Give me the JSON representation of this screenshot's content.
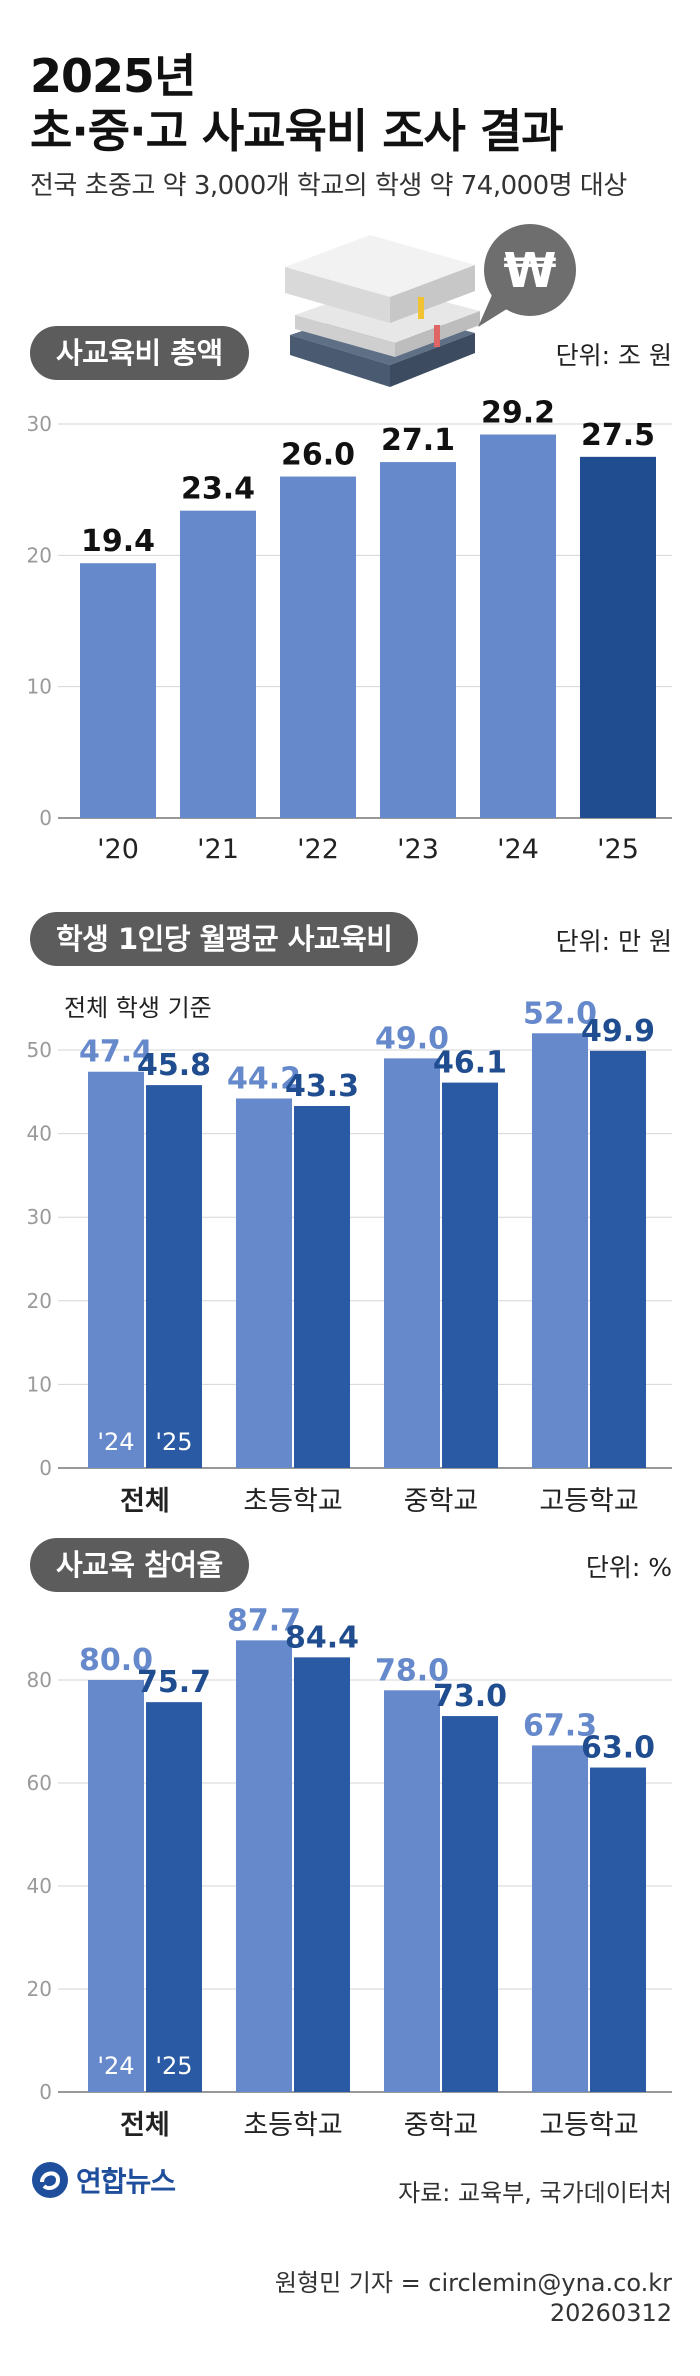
{
  "title": {
    "line1": "2025년",
    "line2": "초·중·고 사교육비 조사 결과"
  },
  "subtitle": "전국 초중고 약 3,000개 학교의 학생 약 74,000명 대상",
  "illustration": {
    "icon": "won-speech-bubble-books-icon",
    "symbol": "₩"
  },
  "colors": {
    "light": "#6689cc",
    "dark": "#2a5aa3",
    "darkest": "#1f4d8f",
    "pill": "#5c5c5c"
  },
  "sections": [
    {
      "pill": "사교육비 총액",
      "unit": "단위: 조 원"
    },
    {
      "pill": "학생 1인당 월평균 사교육비",
      "unit": "단위: 만 원",
      "note": "전체 학생 기준"
    },
    {
      "pill": "사교육 참여율",
      "unit": "단위: %"
    }
  ],
  "chart_data": [
    {
      "type": "bar",
      "categories": [
        "'20",
        "'21",
        "'22",
        "'23",
        "'24",
        "'25"
      ],
      "values": [
        19.4,
        23.4,
        26.0,
        27.1,
        29.2,
        27.5
      ],
      "value_labels": [
        "19.4",
        "23.4",
        "26.0",
        "27.1",
        "29.2",
        "27.5"
      ],
      "yticks": [
        "0",
        "10",
        "20",
        "30"
      ],
      "ylim": [
        0,
        30
      ]
    },
    {
      "type": "bar",
      "categories": [
        "전체",
        "초등학교",
        "중학교",
        "고등학교"
      ],
      "series": [
        {
          "name": "'24",
          "values": [
            47.4,
            44.2,
            49.0,
            52.0
          ],
          "labels": [
            "47.4",
            "44.2",
            "49.0",
            "52.0"
          ]
        },
        {
          "name": "'25",
          "values": [
            45.8,
            43.3,
            46.1,
            49.9
          ],
          "labels": [
            "45.8",
            "43.3",
            "46.1",
            "49.9"
          ]
        }
      ],
      "yticks": [
        "0",
        "10",
        "20",
        "30",
        "40",
        "50"
      ],
      "ylim": [
        0,
        50
      ]
    },
    {
      "type": "bar",
      "categories": [
        "전체",
        "초등학교",
        "중학교",
        "고등학교"
      ],
      "series": [
        {
          "name": "'24",
          "values": [
            80.0,
            87.7,
            78.0,
            67.3
          ],
          "labels": [
            "80.0",
            "87.7",
            "78.0",
            "67.3"
          ]
        },
        {
          "name": "'25",
          "values": [
            75.7,
            84.4,
            73.0,
            63.0
          ],
          "labels": [
            "75.7",
            "84.4",
            "73.0",
            "63.0"
          ]
        }
      ],
      "yticks": [
        "0",
        "20",
        "40",
        "60",
        "80"
      ],
      "ylim": [
        0,
        80
      ]
    }
  ],
  "footer": {
    "logo": "연합뉴스",
    "source": "자료: 교육부, 국가데이터처",
    "reporter": "원형민 기자 = circlemin@yna.co.kr",
    "date": "20260312"
  }
}
